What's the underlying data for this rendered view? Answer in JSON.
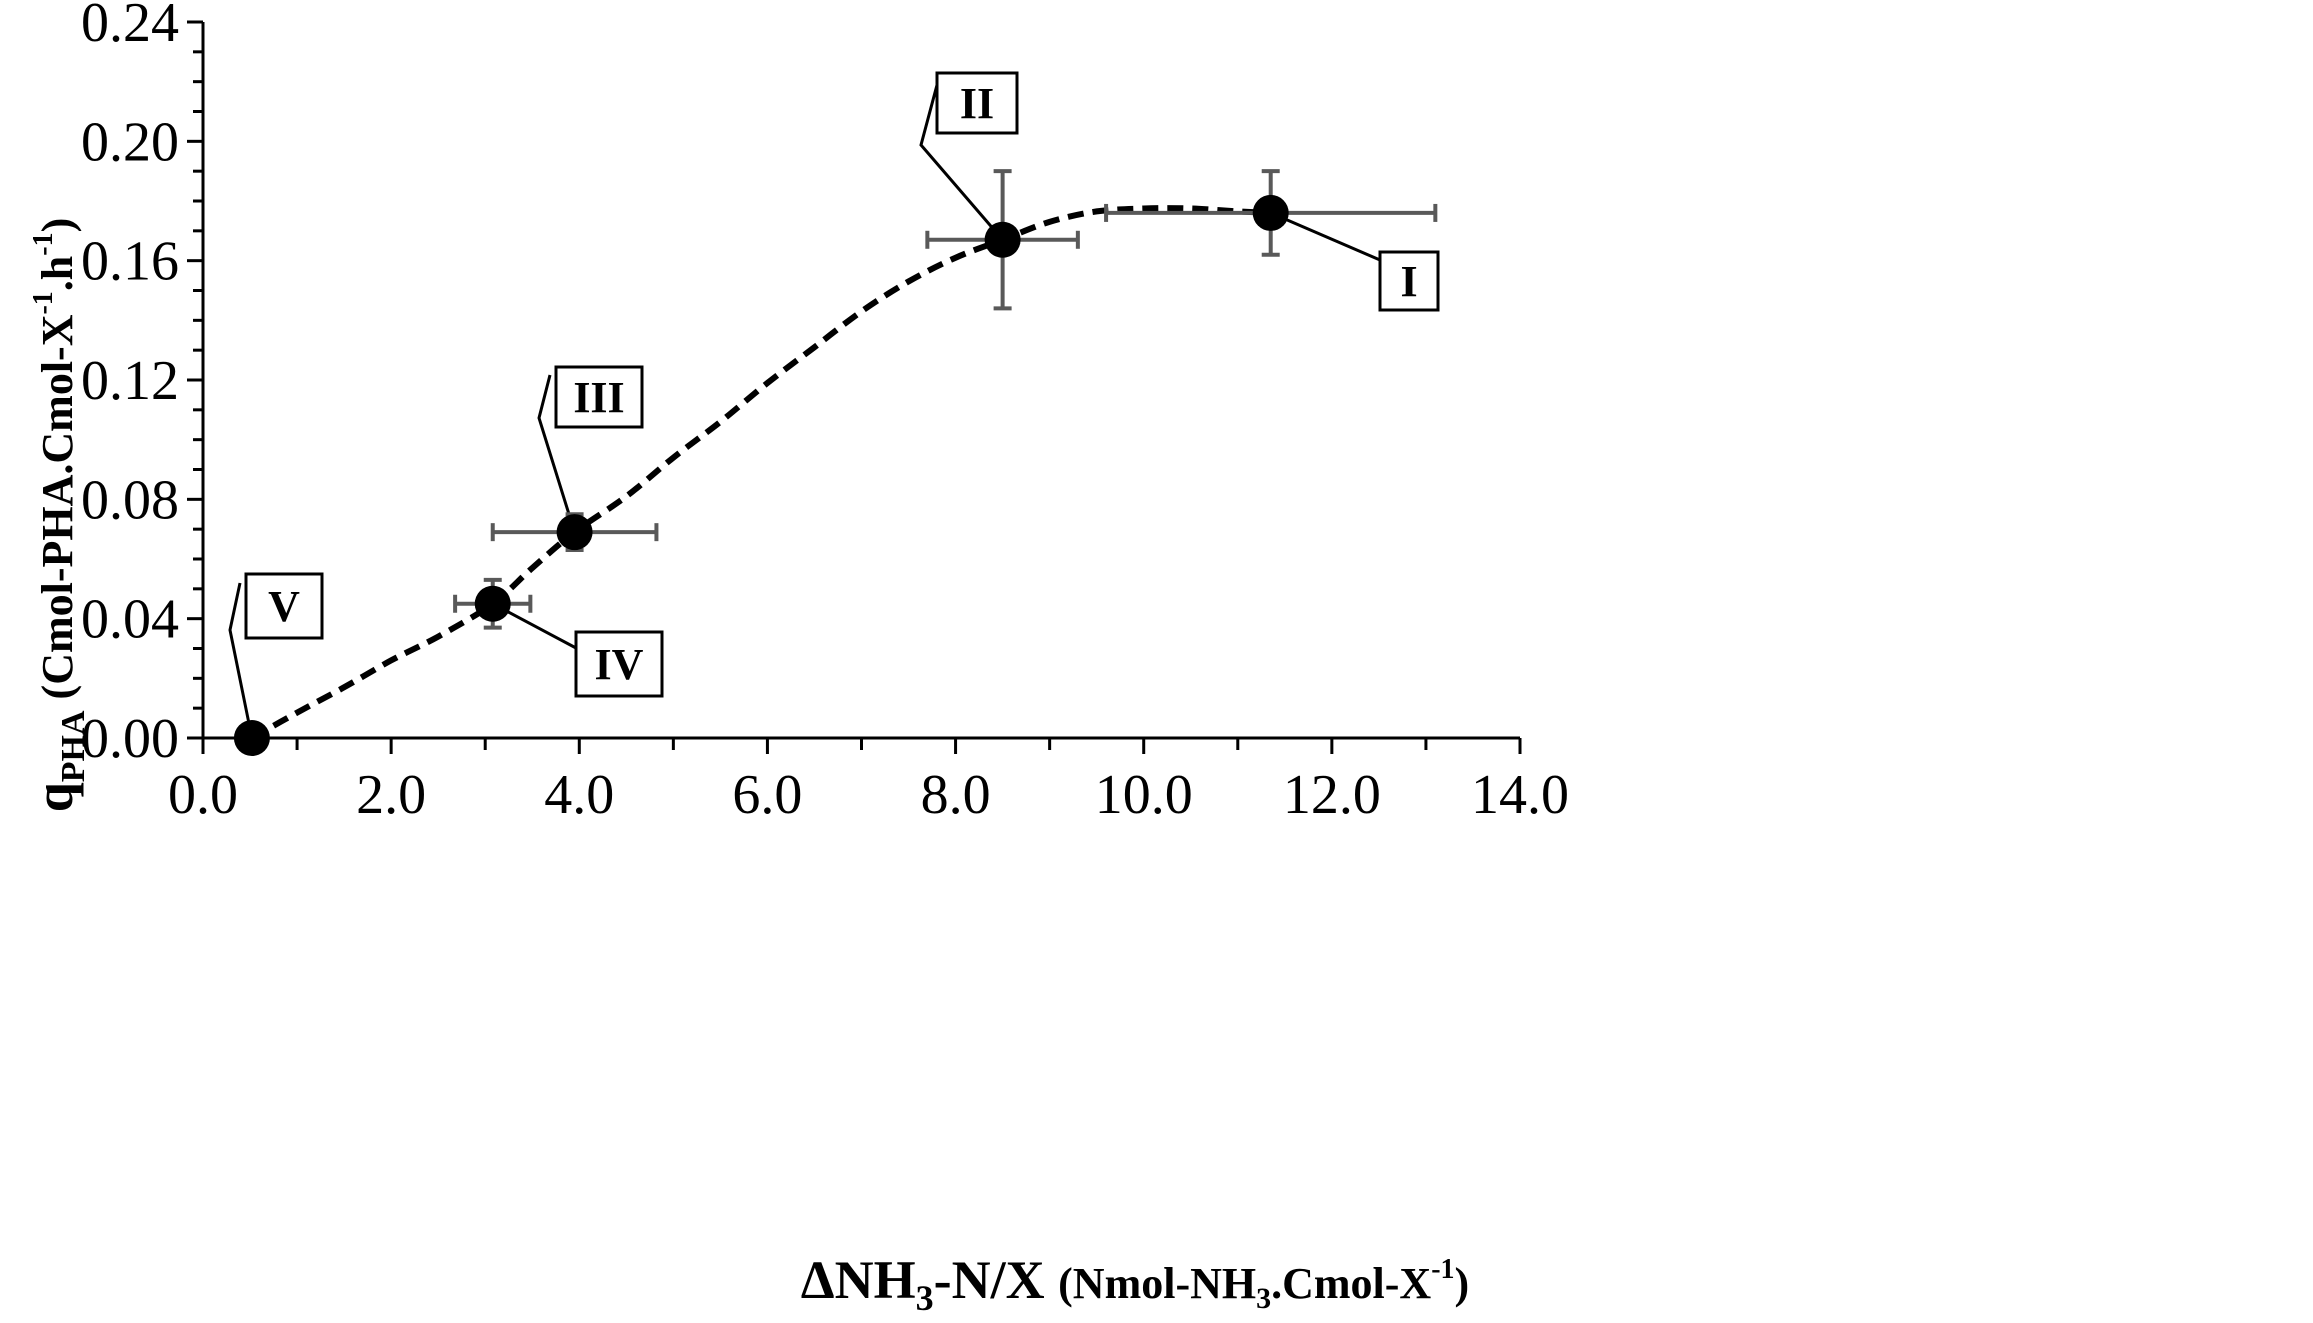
{
  "chart_data": {
    "type": "scatter",
    "xlim": [
      0,
      14
    ],
    "ylim": [
      0,
      0.24
    ],
    "x_ticks": [
      "0.0",
      "2.0",
      "4.0",
      "6.0",
      "8.0",
      "10.0",
      "12.0",
      "14.0"
    ],
    "y_ticks": [
      "0.00",
      "0.04",
      "0.08",
      "0.12",
      "0.16",
      "0.20",
      "0.24"
    ],
    "x_tick_values": [
      0,
      2,
      4,
      6,
      8,
      10,
      12,
      14
    ],
    "y_tick_values": [
      0,
      0.04,
      0.08,
      0.12,
      0.16,
      0.2,
      0.24
    ],
    "xlabel": {
      "main": "ΔNH",
      "main_sub": "3",
      "main_rest": "-N/X ",
      "units_a": "(Nmol-NH",
      "units_sub": "3",
      "units_b": ".Cmol-X",
      "units_sup": "-1",
      "units_c": ")"
    },
    "ylabel": {
      "main": "q",
      "main_sub": "PHA",
      "units_a": " (Cmol-PHA.Cmol-X",
      "units_sup1": "-1",
      "units_b": ".h",
      "units_sup2": "-1",
      "units_c": ")"
    },
    "points": [
      {
        "label": "V",
        "x": 0.52,
        "y": 0.0,
        "x_err": 0,
        "y_err": 0
      },
      {
        "label": "IV",
        "x": 3.08,
        "y": 0.045,
        "x_err": 0.4,
        "y_err": 0.008
      },
      {
        "label": "III",
        "x": 3.95,
        "y": 0.069,
        "x_err": 0.87,
        "y_err": 0.006
      },
      {
        "label": "II",
        "x": 8.5,
        "y": 0.167,
        "x_err": 0.8,
        "y_err": 0.023
      },
      {
        "label": "I",
        "x": 11.35,
        "y": 0.176,
        "x_err": 1.75,
        "y_err": 0.014
      }
    ],
    "trend_curve": {
      "style": "dashed",
      "x": [
        0.52,
        1.0,
        1.5,
        2.0,
        2.5,
        3.08,
        3.5,
        3.95,
        4.5,
        5.0,
        5.5,
        6.0,
        6.5,
        7.0,
        7.5,
        8.0,
        8.5,
        9.0,
        9.5,
        10.0,
        10.5,
        11.0,
        11.35
      ],
      "y": [
        0.0,
        0.0085,
        0.017,
        0.026,
        0.034,
        0.045,
        0.057,
        0.069,
        0.081,
        0.094,
        0.106,
        0.119,
        0.131,
        0.143,
        0.153,
        0.161,
        0.167,
        0.173,
        0.1765,
        0.1775,
        0.1775,
        0.1765,
        0.176
      ]
    },
    "grid": false,
    "legend": "none",
    "colors": {
      "points": "#000000",
      "error_bars": "#595959",
      "curve": "#000000"
    }
  }
}
